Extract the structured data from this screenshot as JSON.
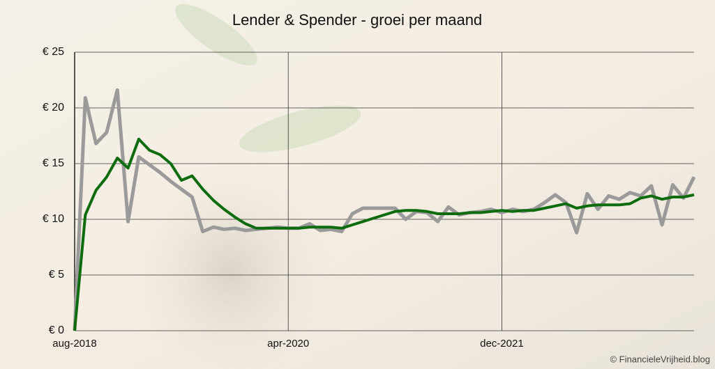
{
  "chart_data": {
    "type": "line",
    "title": "Lender & Spender - groei per maand",
    "source": "© FinancieleVrijheid.blog",
    "categories": [
      "aug-2018",
      null,
      null,
      null,
      null,
      null,
      null,
      null,
      null,
      null,
      null,
      null,
      null,
      null,
      null,
      null,
      null,
      null,
      null,
      null,
      "apr-2020",
      null,
      null,
      null,
      null,
      null,
      null,
      null,
      null,
      null,
      null,
      null,
      null,
      null,
      null,
      null,
      null,
      null,
      null,
      null,
      "dec-2021",
      null,
      null,
      null,
      null,
      null,
      null,
      null,
      null,
      null,
      null,
      null,
      null,
      null,
      null,
      null,
      null,
      null,
      null
    ],
    "series": [
      {
        "color": "#9a9a9a",
        "width": 5,
        "values": [
          0,
          20.9,
          16.8,
          17.8,
          21.6,
          9.8,
          15.6,
          14.9,
          14.2,
          13.4,
          12.7,
          12.0,
          8.9,
          9.3,
          9.1,
          9.2,
          9.0,
          9.1,
          9.2,
          9.3,
          9.2,
          9.2,
          9.6,
          9.0,
          9.1,
          8.9,
          10.5,
          11.0,
          11.0,
          11.0,
          11.0,
          10.0,
          10.7,
          10.6,
          9.8,
          11.1,
          10.4,
          10.6,
          10.7,
          10.9,
          10.6,
          10.9,
          10.7,
          10.9,
          11.5,
          12.2,
          11.5,
          8.8,
          12.3,
          10.9,
          12.1,
          11.8,
          12.4,
          12.1,
          13.0,
          9.5,
          13.1,
          11.9,
          13.8
        ]
      },
      {
        "color": "#0e6b0e",
        "width": 4,
        "values": [
          0,
          10.4,
          12.6,
          13.8,
          15.5,
          14.6,
          17.2,
          16.2,
          15.8,
          15.0,
          13.5,
          13.9,
          12.7,
          11.7,
          10.9,
          10.2,
          9.6,
          9.2,
          9.2,
          9.2,
          9.2,
          9.2,
          9.3,
          9.3,
          9.3,
          9.2,
          9.5,
          9.8,
          10.1,
          10.4,
          10.7,
          10.8,
          10.8,
          10.7,
          10.5,
          10.5,
          10.5,
          10.6,
          10.6,
          10.7,
          10.8,
          10.7,
          10.8,
          10.8,
          11.0,
          11.2,
          11.4,
          11.0,
          11.2,
          11.3,
          11.3,
          11.3,
          11.4,
          11.9,
          12.1,
          11.8,
          12.0,
          12.0,
          12.2
        ]
      }
    ],
    "ylim": [
      0,
      25
    ],
    "yticks": [
      {
        "value": 0,
        "label": "€ 0"
      },
      {
        "value": 5,
        "label": "€ 5"
      },
      {
        "value": 10,
        "label": "€ 10"
      },
      {
        "value": 15,
        "label": "€ 15"
      },
      {
        "value": 20,
        "label": "€ 20"
      },
      {
        "value": 25,
        "label": "€ 25"
      }
    ],
    "grid": true
  }
}
